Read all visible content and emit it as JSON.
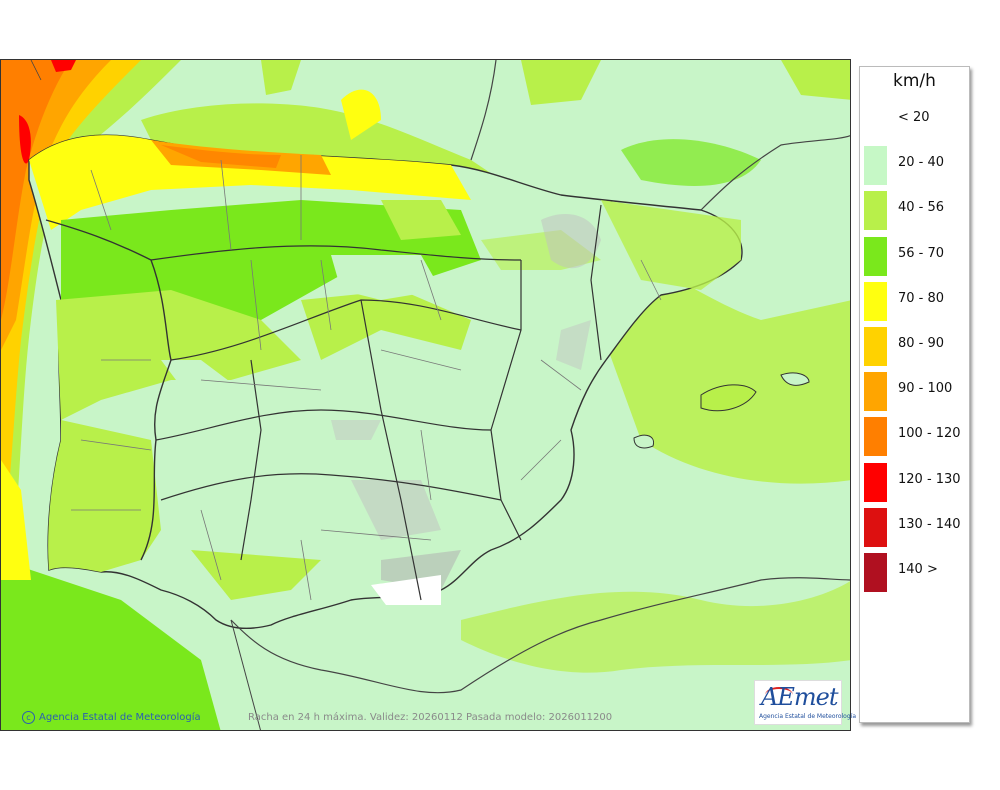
{
  "legend": {
    "title": "km/h",
    "items": [
      {
        "label": "< 20",
        "color": "#ffffff"
      },
      {
        "label": "20 - 40",
        "color": "#c6f8c6"
      },
      {
        "label": "40 - 56",
        "color": "#b8f04a"
      },
      {
        "label": "56 - 70",
        "color": "#7ae81c"
      },
      {
        "label": "70 - 80",
        "color": "#ffff10"
      },
      {
        "label": "80 - 90",
        "color": "#ffd200"
      },
      {
        "label": "90 - 100",
        "color": "#ffa500"
      },
      {
        "label": "100 - 120",
        "color": "#ff7f00"
      },
      {
        "label": "120 - 130",
        "color": "#ff0000"
      },
      {
        "label": "130 - 140",
        "color": "#dd1010"
      },
      {
        "label": "140 >",
        "color": "#b01020"
      }
    ]
  },
  "footer": {
    "credit": "Agencia Estatal de Meteorología",
    "caption": "Racha en 24 h máxima. Validez: 20260112 Pasada modelo: 2026011200"
  },
  "logo": {
    "name": "AEmet",
    "subtitle": "Agencia Estatal de Meteorología"
  }
}
